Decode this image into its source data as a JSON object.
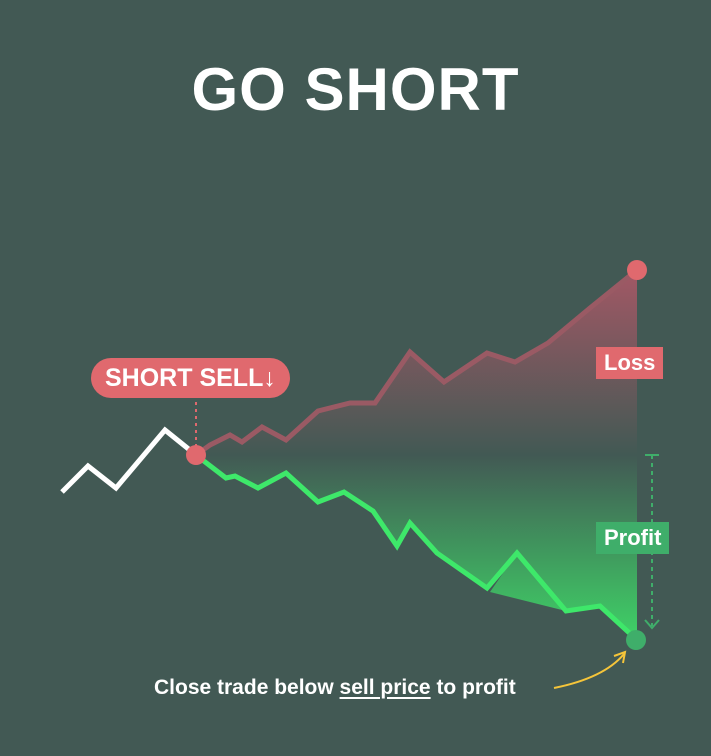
{
  "title": "GO SHORT",
  "short_sell": {
    "label": "SHORT SELL",
    "arrow": "↓"
  },
  "loss_label": "Loss",
  "profit_label": "Profit",
  "caption": {
    "before": "Close trade below ",
    "emphasis": "sell price",
    "after": " to profit"
  },
  "colors": {
    "background": "#425954",
    "history_line": "#ffffff",
    "profit_line": "#3ee86a",
    "loss_line": "#9a5a64",
    "loss_accent": "#e0696e",
    "profit_accent": "#3fae6a",
    "arrow_accent": "#f5c53a"
  }
}
